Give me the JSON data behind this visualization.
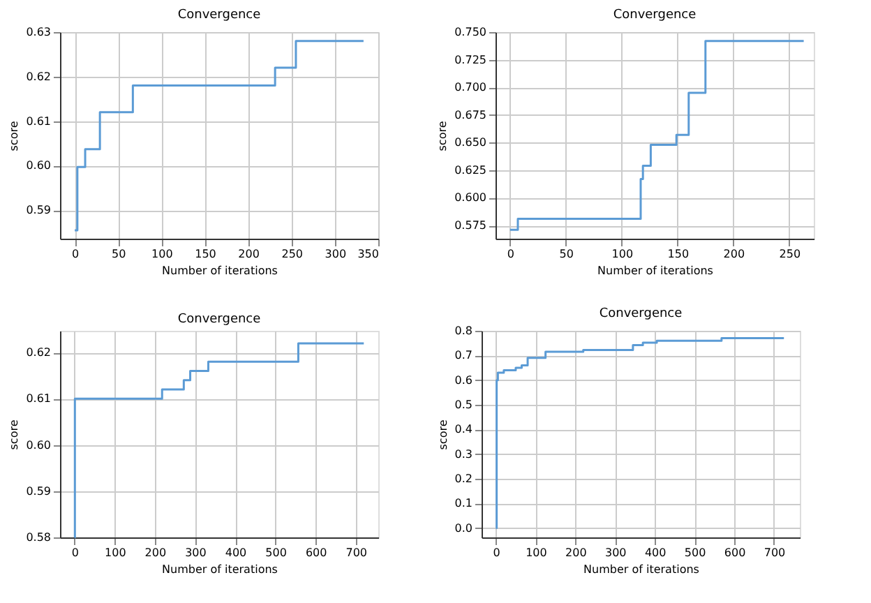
{
  "chart_data": [
    {
      "type": "step",
      "title": "Convergence",
      "xlabel": "Number of iterations",
      "ylabel": "score",
      "grid": true,
      "xlim": [
        -17,
        350
      ],
      "ylim": [
        0.5836,
        0.63
      ],
      "xticks": [
        0,
        50,
        100,
        150,
        200,
        250,
        300,
        350
      ],
      "yticks": [
        0.59,
        {
          "value": 0.6,
          "label": "0.60"
        },
        0.61,
        0.62,
        0.63
      ],
      "series": [
        {
          "color": "#5b9bd5",
          "x": [
            0,
            3,
            12,
            29,
            67,
            231,
            255,
            333
          ],
          "values": [
            0.5855,
            0.5997,
            0.6037,
            0.612,
            0.618,
            0.622,
            0.628,
            0.628
          ]
        }
      ]
    },
    {
      "type": "step",
      "title": "Convergence",
      "xlabel": "Number of iterations",
      "ylabel": "score",
      "grid": true,
      "xlim": [
        -13,
        272
      ],
      "ylim": [
        0.563,
        0.75
      ],
      "xticks": [
        0,
        50,
        100,
        150,
        200,
        250
      ],
      "yticks": [
        0.575,
        {
          "value": 0.6,
          "label": "0.600"
        },
        0.625,
        {
          "value": 0.65,
          "label": "0.650"
        },
        0.675,
        {
          "value": 0.7,
          "label": "0.700"
        },
        0.725,
        {
          "value": 0.75,
          "label": "0.750"
        }
      ],
      "series": [
        {
          "color": "#5b9bd5",
          "x": [
            0,
            7,
            117,
            119,
            126,
            149,
            160,
            175,
            263
          ],
          "values": [
            0.571,
            0.581,
            0.617,
            0.629,
            0.648,
            0.657,
            0.695,
            0.742,
            0.742
          ]
        }
      ]
    },
    {
      "type": "step",
      "title": "Convergence",
      "xlabel": "Number of iterations",
      "ylabel": "score",
      "grid": true,
      "xlim": [
        -36,
        756
      ],
      "ylim": [
        0.58,
        0.6247
      ],
      "xticks": [
        0,
        100,
        200,
        300,
        400,
        500,
        600,
        700
      ],
      "yticks": [
        0.58,
        0.59,
        {
          "value": 0.6,
          "label": "0.60"
        },
        0.61,
        0.62
      ],
      "series": [
        {
          "color": "#5b9bd5",
          "x": [
            0,
            1,
            218,
            272,
            288,
            333,
            557,
            720
          ],
          "values": [
            0.58,
            0.61,
            0.612,
            0.614,
            0.616,
            0.618,
            0.622,
            0.622
          ]
        }
      ]
    },
    {
      "type": "step",
      "title": "Convergence",
      "xlabel": "Number of iterations",
      "ylabel": "score",
      "grid": true,
      "xlim": [
        -36,
        765
      ],
      "ylim": [
        -0.038,
        0.8
      ],
      "xticks": [
        0,
        100,
        200,
        300,
        400,
        500,
        600,
        700
      ],
      "yticks": [
        {
          "value": 0,
          "label": "0.0"
        },
        0.1,
        0.2,
        0.3,
        0.4,
        0.5,
        0.6,
        0.7,
        0.8
      ],
      "series": [
        {
          "color": "#5b9bd5",
          "x": [
            0,
            2,
            5,
            20,
            50,
            65,
            80,
            125,
            220,
            345,
            370,
            405,
            568,
            725
          ],
          "values": [
            0,
            0.6,
            0.63,
            0.64,
            0.65,
            0.66,
            0.69,
            0.715,
            0.722,
            0.742,
            0.752,
            0.76,
            0.77,
            0.77
          ]
        }
      ]
    }
  ]
}
